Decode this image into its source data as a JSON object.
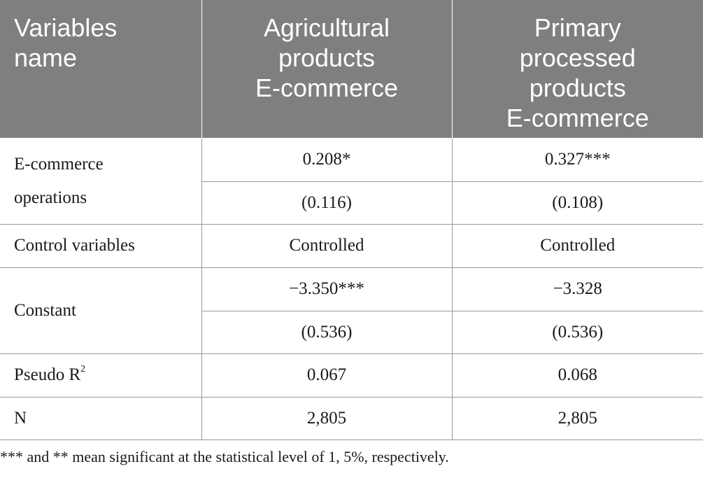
{
  "table": {
    "headers": {
      "col1": [
        "Variables",
        "name"
      ],
      "col2": [
        "Agricultural",
        "products",
        "E-commerce"
      ],
      "col3": [
        "Primary",
        "processed",
        "products",
        "E-commerce"
      ]
    },
    "rows": {
      "ecommerce": {
        "label": [
          "E-commerce",
          "operations"
        ],
        "agri_coef": "0.208*",
        "agri_se": "(0.116)",
        "prim_coef": "0.327***",
        "prim_se": "(0.108)"
      },
      "control": {
        "label": "Control variables",
        "agri": "Controlled",
        "prim": "Controlled"
      },
      "constant": {
        "label": "Constant",
        "agri_coef": "−3.350***",
        "agri_se": "(0.536)",
        "prim_coef": "−3.328",
        "prim_se": "(0.536)"
      },
      "pseudo_r2": {
        "label": "Pseudo R",
        "label_sup": "2",
        "agri": "0.067",
        "prim": "0.068"
      },
      "n": {
        "label": "N",
        "agri": "2,805",
        "prim": "2,805"
      }
    }
  },
  "footnote": "*** and ** mean significant at the statistical level of 1, 5%, respectively."
}
